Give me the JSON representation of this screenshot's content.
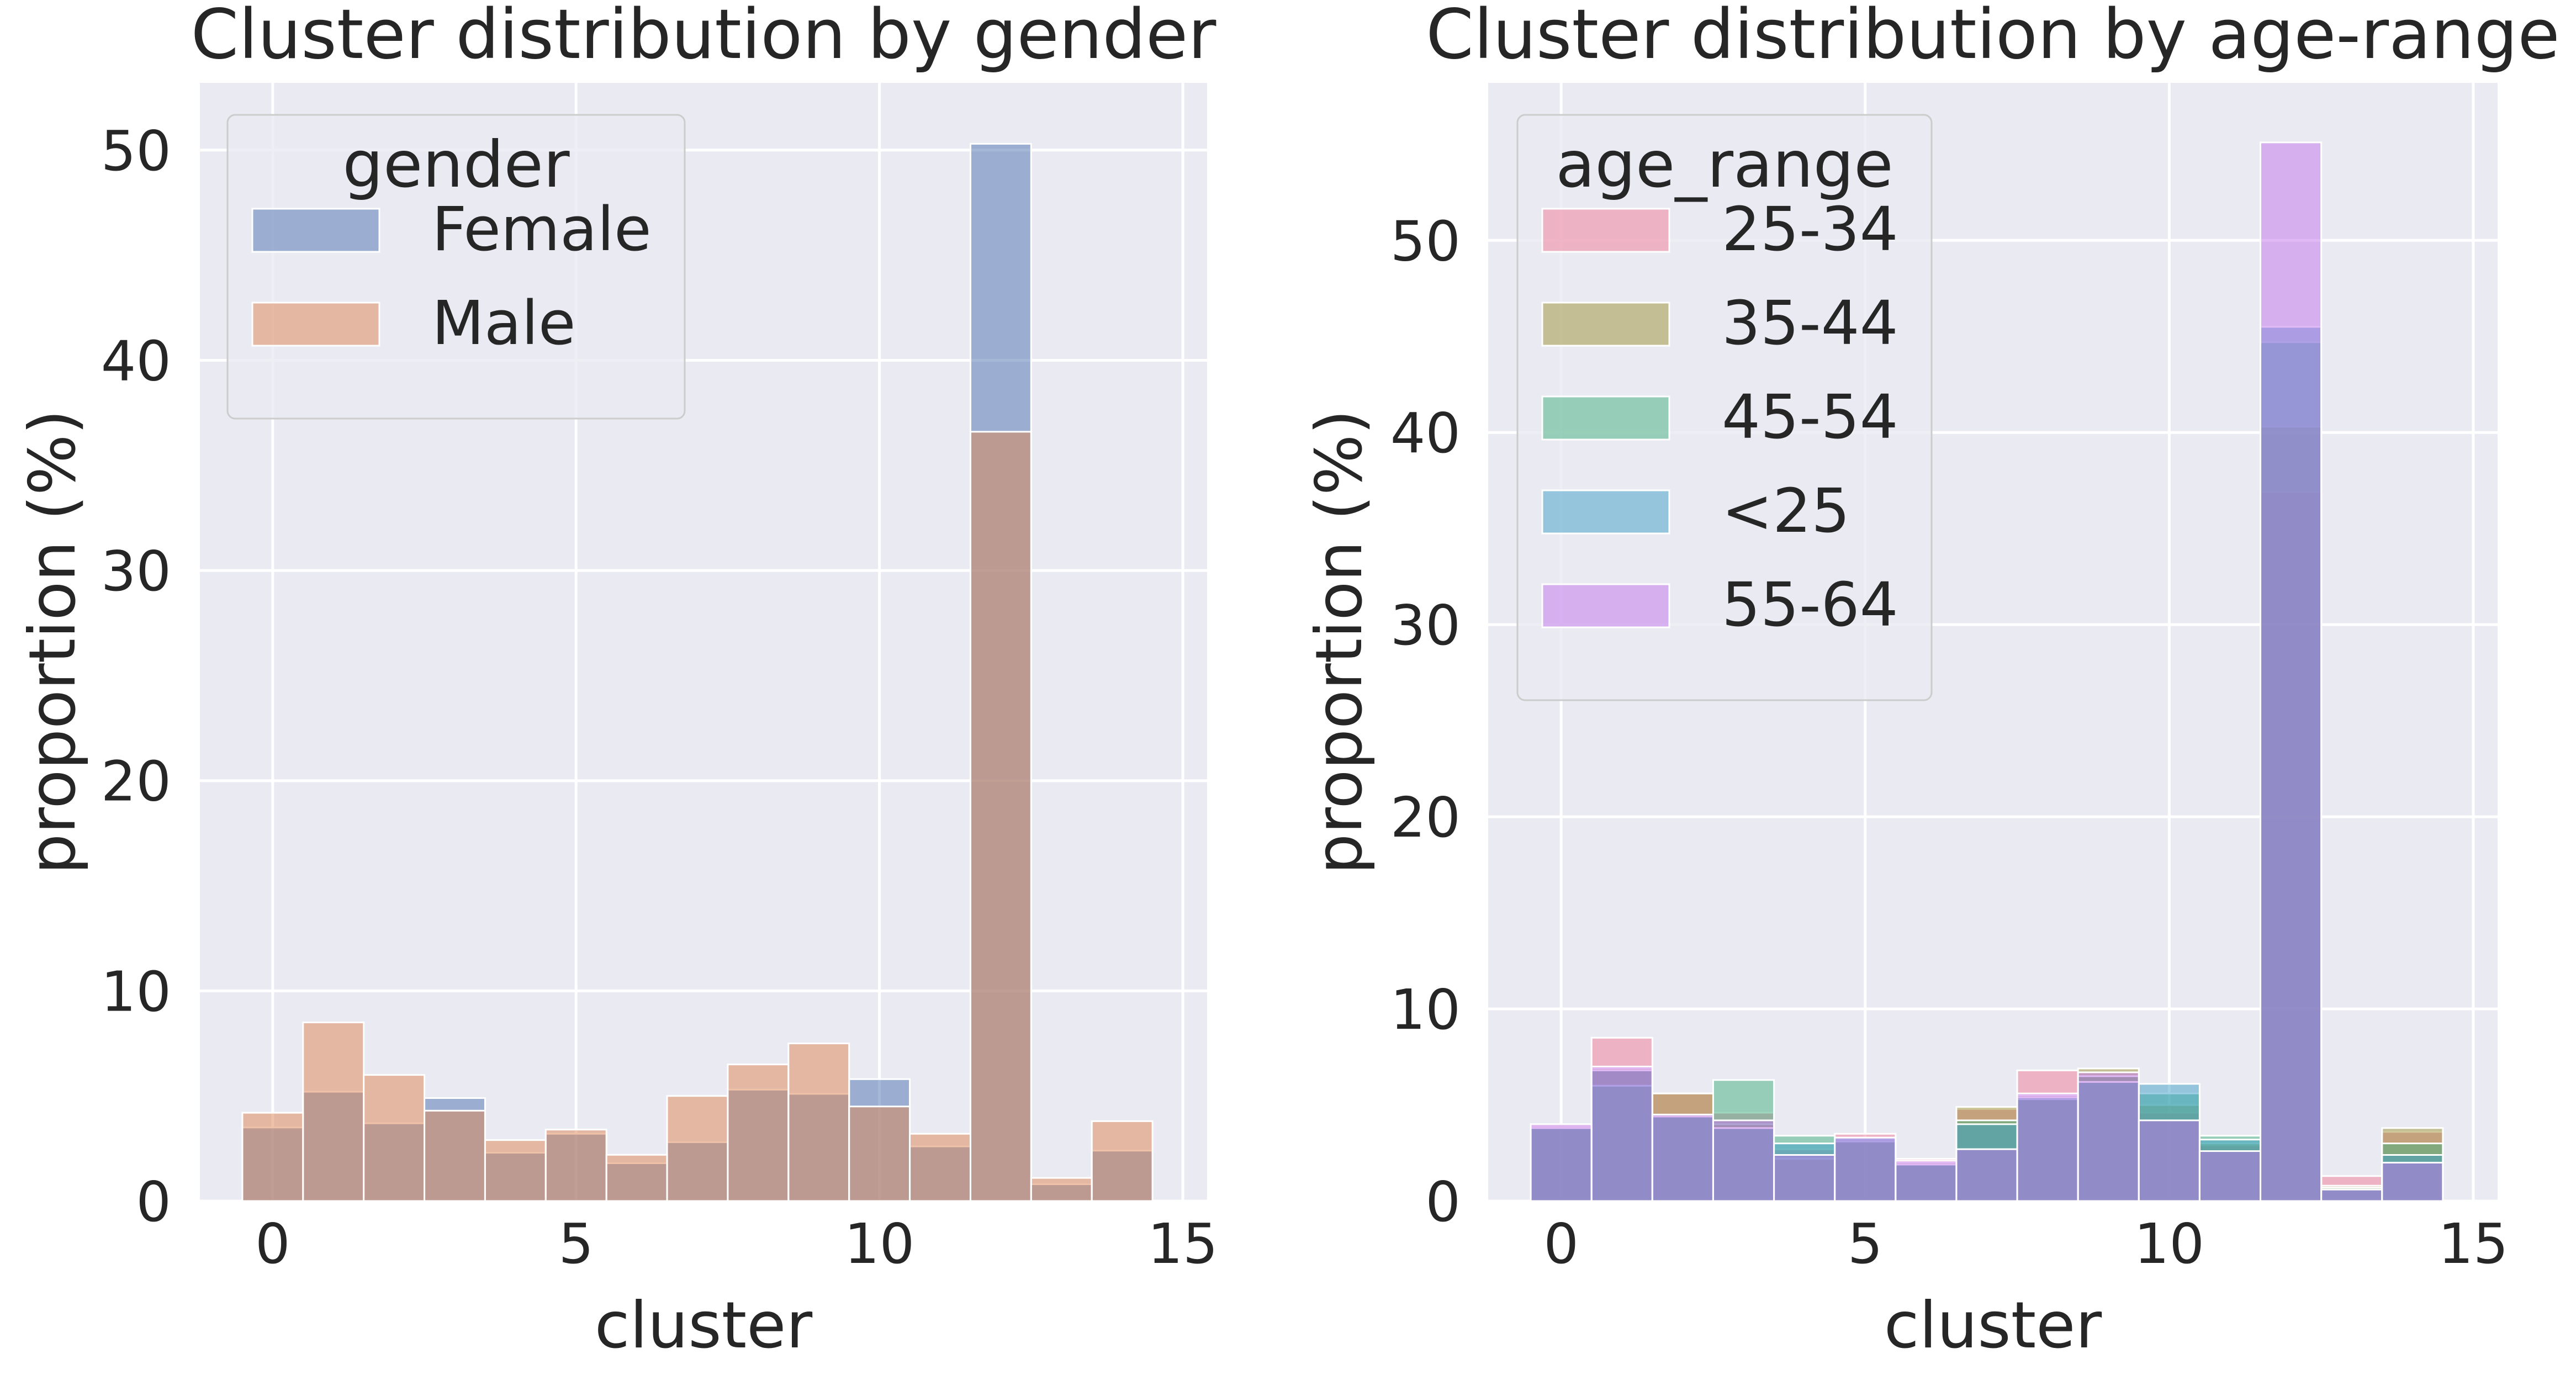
{
  "chart_data": [
    {
      "type": "bar",
      "title": "Cluster distribution by gender",
      "xlabel": "cluster",
      "ylabel": "proportion (%)",
      "xlim": [
        -1.2,
        15.4
      ],
      "ylim": [
        0,
        53.2
      ],
      "xticks": [
        "0",
        "5",
        "10",
        "15"
      ],
      "yticks": [
        "0",
        "10",
        "20",
        "30",
        "40",
        "50"
      ],
      "grid": true,
      "legend": {
        "title": "gender",
        "placement": "top-left"
      },
      "categories": [
        0,
        1,
        2,
        3,
        4,
        5,
        6,
        7,
        8,
        9,
        10,
        11,
        12,
        13,
        14
      ],
      "series": [
        {
          "name": "Female",
          "color": "#4c72b0",
          "values": [
            3.5,
            5.2,
            3.7,
            4.9,
            2.3,
            3.2,
            1.8,
            2.8,
            5.3,
            5.1,
            5.8,
            2.6,
            50.3,
            0.8,
            2.4
          ]
        },
        {
          "name": "Male",
          "color": "#dd8452",
          "values": [
            4.2,
            8.5,
            6.0,
            4.3,
            2.9,
            3.4,
            2.2,
            5.0,
            6.5,
            7.5,
            4.5,
            3.2,
            36.6,
            1.1,
            3.8
          ]
        }
      ]
    },
    {
      "type": "bar",
      "title": "Cluster distribution by age-range",
      "xlabel": "cluster",
      "ylabel": "proportion (%)",
      "xlim": [
        -1.2,
        15.4
      ],
      "ylim": [
        0,
        58.2
      ],
      "xticks": [
        "0",
        "5",
        "10",
        "15"
      ],
      "yticks": [
        "0",
        "10",
        "20",
        "30",
        "40",
        "50"
      ],
      "grid": true,
      "legend": {
        "title": "age_range",
        "placement": "top-left"
      },
      "categories": [
        0,
        1,
        2,
        3,
        4,
        5,
        6,
        7,
        8,
        9,
        10,
        11,
        12,
        13,
        14
      ],
      "series": [
        {
          "name": "25-34",
          "color": "#f07a95",
          "values": [
            4.0,
            8.5,
            5.6,
            4.6,
            2.7,
            3.5,
            2.2,
            4.8,
            6.8,
            6.5,
            4.6,
            2.9,
            36.9,
            1.3,
            3.6
          ]
        },
        {
          "name": "35-44",
          "color": "#9e9137",
          "values": [
            3.9,
            6.9,
            5.6,
            4.0,
            2.2,
            3.2,
            2.0,
            4.9,
            5.5,
            6.9,
            5.0,
            3.0,
            40.3,
            0.8,
            3.8
          ]
        },
        {
          "name": "45-54",
          "color": "#40b07e",
          "values": [
            3.8,
            6.0,
            4.5,
            6.3,
            3.4,
            3.1,
            1.9,
            4.2,
            5.3,
            6.5,
            5.6,
            3.4,
            44.7,
            0.7,
            3.0
          ]
        },
        {
          "name": "<25",
          "color": "#40a0c8",
          "values": [
            3.8,
            6.8,
            4.4,
            3.8,
            3.0,
            3.3,
            1.9,
            4.0,
            5.4,
            6.2,
            6.1,
            3.2,
            45.5,
            0.6,
            2.4
          ]
        },
        {
          "name": "55-64",
          "color": "#c174ec",
          "values": [
            4.0,
            7.0,
            4.5,
            4.2,
            2.4,
            3.3,
            2.1,
            2.7,
            5.6,
            6.7,
            4.2,
            2.6,
            55.1,
            0.6,
            2.0
          ]
        }
      ]
    }
  ]
}
